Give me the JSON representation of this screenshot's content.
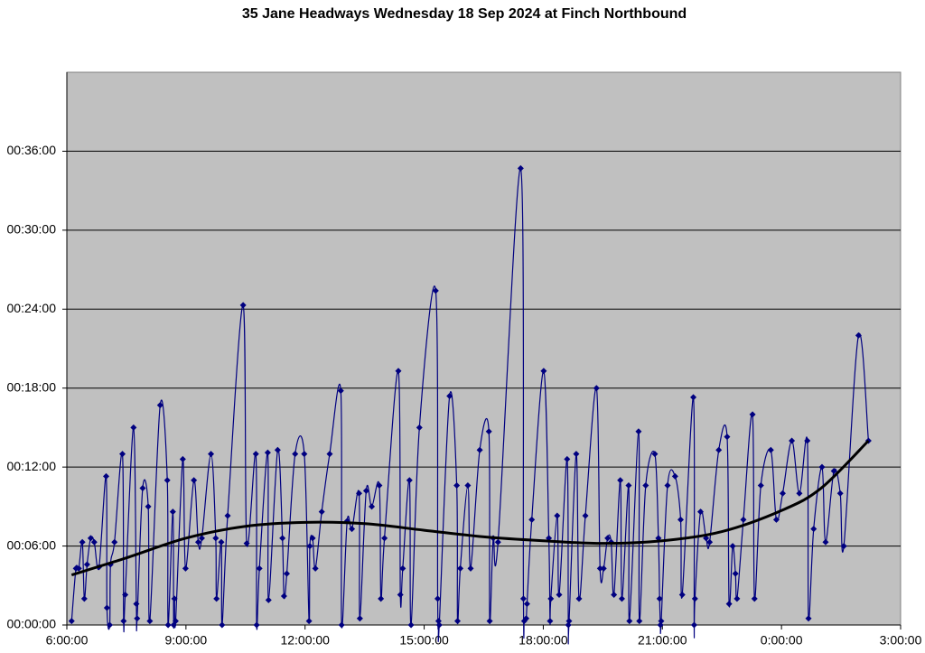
{
  "chart_data": {
    "type": "line",
    "title": "35 Jane Headways Wednesday 18 Sep 2024 at Finch Northbound",
    "xlim": [
      6,
      27
    ],
    "xticks": [
      {
        "value": 6,
        "label": "6:00:00"
      },
      {
        "value": 9,
        "label": "9:00:00"
      },
      {
        "value": 12,
        "label": "12:00:00"
      },
      {
        "value": 15,
        "label": "15:00:00"
      },
      {
        "value": 18,
        "label": "18:00:00"
      },
      {
        "value": 21,
        "label": "21:00:00"
      },
      {
        "value": 24,
        "label": "0:00:00"
      },
      {
        "value": 27,
        "label": "3:00:00"
      }
    ],
    "ylim": [
      0,
      42
    ],
    "yticks": [
      {
        "value": 0,
        "label": "00:00:00"
      },
      {
        "value": 6,
        "label": "00:06:00"
      },
      {
        "value": 12,
        "label": "00:12:00"
      },
      {
        "value": 18,
        "label": "00:18:00"
      },
      {
        "value": 24,
        "label": "00:24:00"
      },
      {
        "value": 30,
        "label": "00:30:00"
      },
      {
        "value": 36,
        "label": "00:36:00"
      }
    ],
    "grid": true,
    "background": "#c0c0c0",
    "series": [
      {
        "color": "#000080",
        "markers": true,
        "smooth": true,
        "x": [
          6.12,
          6.23,
          6.3,
          6.39,
          6.44,
          6.51,
          6.6,
          6.69,
          6.81,
          6.99,
          7.01,
          7.08,
          7.1,
          7.2,
          7.4,
          7.43,
          7.47,
          7.68,
          7.75,
          7.77,
          7.91,
          8.05,
          8.09,
          8.35,
          8.53,
          8.55,
          8.67,
          8.69,
          8.71,
          8.74,
          8.92,
          8.99,
          9.2,
          9.31,
          9.4,
          9.63,
          9.75,
          9.77,
          9.89,
          9.91,
          10.05,
          10.44,
          10.53,
          10.76,
          10.78,
          10.85,
          11.06,
          11.08,
          11.31,
          11.43,
          11.47,
          11.54,
          11.75,
          11.98,
          12.1,
          12.12,
          12.19,
          12.26,
          12.42,
          12.62,
          12.9,
          12.92,
          13.06,
          13.18,
          13.36,
          13.38,
          13.54,
          13.68,
          13.87,
          13.91,
          14.0,
          14.35,
          14.4,
          14.46,
          14.63,
          14.67,
          14.88,
          15.29,
          15.34,
          15.36,
          15.38,
          15.64,
          15.82,
          15.84,
          15.91,
          16.1,
          16.17,
          16.4,
          16.63,
          16.65,
          16.74,
          16.86,
          17.43,
          17.5,
          17.52,
          17.57,
          17.59,
          17.71,
          18.01,
          18.14,
          18.17,
          18.19,
          18.35,
          18.4,
          18.6,
          18.63,
          18.65,
          18.83,
          18.9,
          19.06,
          19.34,
          19.43,
          19.52,
          19.62,
          19.71,
          19.78,
          19.94,
          19.98,
          20.15,
          20.17,
          20.4,
          20.42,
          20.58,
          20.81,
          20.9,
          20.93,
          20.95,
          20.97,
          21.13,
          21.32,
          21.46,
          21.5,
          21.78,
          21.8,
          21.82,
          21.96,
          22.1,
          22.19,
          22.42,
          22.63,
          22.68,
          22.77,
          22.84,
          22.88,
          23.04,
          23.27,
          23.32,
          23.48,
          23.73,
          23.87,
          24.03,
          24.26,
          24.45,
          24.65,
          24.68,
          24.81,
          25.02,
          25.11,
          25.32,
          25.48,
          25.57,
          25.94,
          26.19
        ],
        "values": [
          0.3,
          4.3,
          4.3,
          6.3,
          2.0,
          4.6,
          6.6,
          6.3,
          4.4,
          11.3,
          1.3,
          0,
          4.6,
          6.3,
          13.0,
          0.3,
          2.3,
          15.0,
          1.6,
          0.5,
          10.4,
          9.0,
          0.3,
          16.7,
          11.0,
          0,
          8.6,
          0,
          2.0,
          0.3,
          12.6,
          4.3,
          11.0,
          6.3,
          6.6,
          13.0,
          6.6,
          2.0,
          6.3,
          0,
          8.3,
          24.3,
          6.2,
          13.0,
          0,
          4.3,
          13.1,
          1.9,
          13.3,
          6.6,
          2.2,
          3.9,
          13.0,
          13.0,
          0.3,
          6.0,
          6.6,
          4.3,
          8.6,
          13.0,
          17.8,
          0,
          7.9,
          7.3,
          10.0,
          0.5,
          10.2,
          9.0,
          10.6,
          2.0,
          6.6,
          19.3,
          2.3,
          4.3,
          11.0,
          0,
          15.0,
          25.4,
          2.0,
          0.3,
          0,
          17.4,
          10.6,
          0.3,
          4.3,
          10.6,
          4.3,
          13.3,
          14.7,
          0.3,
          6.6,
          6.3,
          34.7,
          2.0,
          0.3,
          0.5,
          1.6,
          8.0,
          19.3,
          6.6,
          0.3,
          2.0,
          8.3,
          2.3,
          12.6,
          0,
          0.3,
          13.0,
          2.0,
          8.3,
          18.0,
          4.3,
          4.3,
          6.6,
          6.3,
          2.3,
          11.0,
          2.0,
          10.6,
          0.3,
          14.7,
          0.3,
          10.6,
          13.0,
          6.6,
          2.0,
          0,
          0.3,
          10.6,
          11.3,
          8.0,
          2.3,
          17.3,
          0,
          2.0,
          8.6,
          6.6,
          6.3,
          13.3,
          14.3,
          1.6,
          6.0,
          3.9,
          2.0,
          8.0,
          16.0,
          2.0,
          10.6,
          13.3,
          8.0,
          10.0,
          14.0,
          10.0,
          14.0,
          0.5,
          7.3,
          12.0,
          6.3,
          11.7,
          10.0,
          6.0,
          22.0,
          14.0
        ]
      },
      {
        "color": "#000000",
        "markers": false,
        "smooth": true,
        "width": 3,
        "x": [
          6.12,
          7.5,
          9,
          10.5,
          12,
          13.5,
          15,
          16.5,
          18,
          19.5,
          21,
          22.5,
          24,
          25,
          26.19
        ],
        "values": [
          3.8,
          5.1,
          6.6,
          7.5,
          7.8,
          7.7,
          7.2,
          6.7,
          6.4,
          6.2,
          6.4,
          7.1,
          8.7,
          10.4,
          14.0
        ]
      }
    ]
  }
}
